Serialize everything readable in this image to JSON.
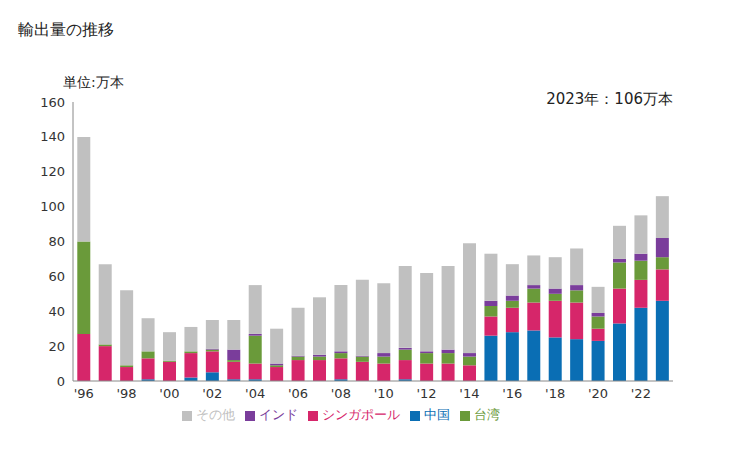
{
  "chart_data": {
    "type": "bar",
    "title": "輸出量の推移",
    "ylabel": "単位:万本",
    "annotation": "2023年：106万本",
    "stacked": true,
    "grid": false,
    "legend": "bottom",
    "categories": [
      "'96",
      null,
      "'98",
      null,
      "'00",
      null,
      "'02",
      null,
      "'04",
      null,
      "'06",
      null,
      "'08",
      null,
      "'10",
      null,
      "'12",
      null,
      "'14",
      null,
      "'16",
      null,
      "'18",
      null,
      "'20",
      null,
      "'22",
      null
    ],
    "ylim": [
      0,
      160
    ],
    "yticks": [
      0,
      20,
      40,
      60,
      80,
      100,
      120,
      140,
      160
    ],
    "series": [
      {
        "name": "中国",
        "color": "#0a6eb4",
        "values": [
          0,
          0,
          0,
          1,
          0,
          2,
          5,
          1,
          1,
          0,
          0,
          0,
          1,
          0,
          0,
          1,
          0,
          0,
          0,
          26,
          28,
          29,
          25,
          24,
          23,
          33,
          42,
          46
        ]
      },
      {
        "name": "シンガポール",
        "color": "#d6266a",
        "values": [
          27,
          20,
          8,
          12,
          11,
          14,
          12,
          10,
          9,
          8,
          12,
          12,
          12,
          11,
          10,
          11,
          10,
          10,
          9,
          11,
          14,
          16,
          21,
          21,
          7,
          20,
          16,
          18
        ]
      },
      {
        "name": "台湾",
        "color": "#6a9a3a",
        "values": [
          53,
          1,
          1,
          4,
          0.5,
          1,
          1,
          1,
          16,
          1,
          2,
          2,
          3,
          3,
          4,
          6,
          6,
          6,
          5,
          6,
          4,
          8,
          4,
          7,
          7,
          15,
          11,
          7
        ]
      },
      {
        "name": "インド",
        "color": "#7a3d9b",
        "values": [
          0,
          0,
          0,
          0,
          0,
          0,
          0.5,
          6,
          1,
          1,
          0.5,
          1,
          1,
          0.5,
          2,
          1,
          1,
          2,
          2,
          3,
          3,
          2,
          3,
          3,
          2,
          2,
          4,
          11
        ]
      },
      {
        "name": "その他",
        "color": "#c0c0c0",
        "values": [
          60,
          46,
          43,
          19,
          16.5,
          14,
          16.5,
          17,
          28,
          20,
          27.5,
          33,
          38,
          43.5,
          40,
          47,
          45,
          48,
          63,
          27,
          18,
          17,
          18,
          21,
          15,
          19,
          22,
          24
        ]
      }
    ]
  }
}
